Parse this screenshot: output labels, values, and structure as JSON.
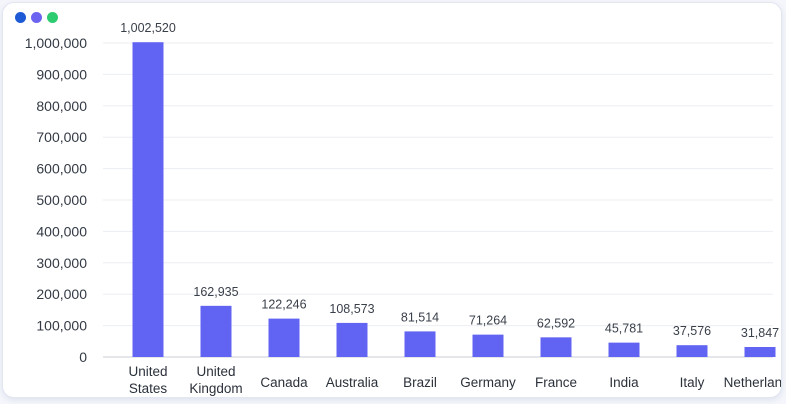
{
  "window": {
    "dots": [
      {
        "name": "window-dot-blue",
        "color": "#1f5ad6"
      },
      {
        "name": "window-dot-purple",
        "color": "#6c63f0"
      },
      {
        "name": "window-dot-green",
        "color": "#2ecc71"
      }
    ]
  },
  "chart_data": {
    "type": "bar",
    "title": "",
    "xlabel": "",
    "ylabel": "",
    "categories": [
      [
        "United",
        "States"
      ],
      [
        "United",
        "Kingdom"
      ],
      [
        "Canada"
      ],
      [
        "Australia"
      ],
      [
        "Brazil"
      ],
      [
        "Germany"
      ],
      [
        "France"
      ],
      [
        "India"
      ],
      [
        "Italy"
      ],
      [
        "Netherlands"
      ]
    ],
    "values": [
      1002520,
      162935,
      122246,
      108573,
      81514,
      71264,
      62592,
      45781,
      37576,
      31847
    ],
    "data_labels": [
      "1,002,520",
      "162,935",
      "122,246",
      "108,573",
      "81,514",
      "71,264",
      "62,592",
      "45,781",
      "37,576",
      "31,847"
    ],
    "yticks": [
      0,
      100000,
      200000,
      300000,
      400000,
      500000,
      600000,
      700000,
      800000,
      900000,
      1000000
    ],
    "ytick_labels": [
      "0",
      "100,000",
      "200,000",
      "300,000",
      "400,000",
      "500,000",
      "600,000",
      "700,000",
      "800,000",
      "900,000",
      "1,000,000"
    ],
    "ylim": [
      0,
      1000000
    ],
    "grid": true,
    "legend": "none",
    "bar_color": "#6163f2",
    "grid_color": "#eceef3",
    "axis_color": "#c9ccd3"
  }
}
